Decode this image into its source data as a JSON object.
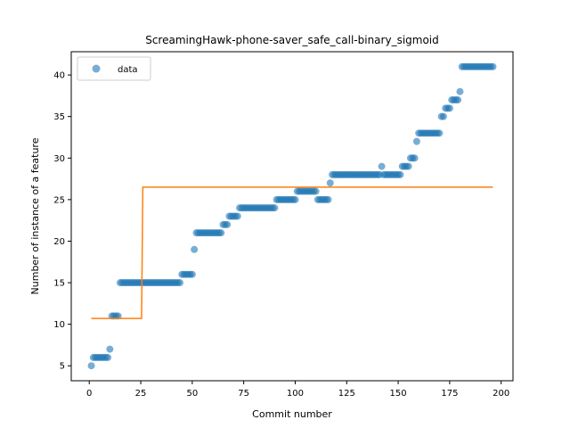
{
  "chart_data": {
    "type": "scatter",
    "title": "ScreamingHawk-phone-saver_safe_call-binary_sigmoid",
    "xlabel": "Commit number",
    "ylabel": "Number of instance of a feature",
    "xlim": [
      -8.75,
      205.75
    ],
    "ylim": [
      3.2,
      42.8
    ],
    "xticks": [
      0,
      25,
      50,
      75,
      100,
      125,
      150,
      175,
      200
    ],
    "yticks": [
      5,
      10,
      15,
      20,
      25,
      30,
      35,
      40
    ],
    "grid": false,
    "legend": {
      "placement": "top-left",
      "entries": [
        "data"
      ]
    },
    "colors": {
      "data": "#1f77b4",
      "fit": "#ff7f0e"
    },
    "series": [
      {
        "name": "data",
        "kind": "scatter",
        "runs": [
          {
            "x_start": 1,
            "x_end": 1,
            "y": 5
          },
          {
            "x_start": 2,
            "x_end": 9,
            "y": 6
          },
          {
            "x_start": 10,
            "x_end": 10,
            "y": 7
          },
          {
            "x_start": 11,
            "x_end": 14,
            "y": 11
          },
          {
            "x_start": 15,
            "x_end": 44,
            "y": 15
          },
          {
            "x_start": 45,
            "x_end": 50,
            "y": 16
          },
          {
            "x_start": 51,
            "x_end": 51,
            "y": 19
          },
          {
            "x_start": 52,
            "x_end": 64,
            "y": 21
          },
          {
            "x_start": 65,
            "x_end": 67,
            "y": 22
          },
          {
            "x_start": 68,
            "x_end": 72,
            "y": 23
          },
          {
            "x_start": 73,
            "x_end": 90,
            "y": 24
          },
          {
            "x_start": 91,
            "x_end": 100,
            "y": 25
          },
          {
            "x_start": 101,
            "x_end": 110,
            "y": 26
          },
          {
            "x_start": 111,
            "x_end": 116,
            "y": 25
          },
          {
            "x_start": 117,
            "x_end": 117,
            "y": 27
          },
          {
            "x_start": 118,
            "x_end": 141,
            "y": 28
          },
          {
            "x_start": 142,
            "x_end": 142,
            "y": 29
          },
          {
            "x_start": 143,
            "x_end": 151,
            "y": 28
          },
          {
            "x_start": 152,
            "x_end": 155,
            "y": 29
          },
          {
            "x_start": 156,
            "x_end": 158,
            "y": 30
          },
          {
            "x_start": 159,
            "x_end": 159,
            "y": 32
          },
          {
            "x_start": 160,
            "x_end": 170,
            "y": 33
          },
          {
            "x_start": 171,
            "x_end": 172,
            "y": 35
          },
          {
            "x_start": 173,
            "x_end": 175,
            "y": 36
          },
          {
            "x_start": 176,
            "x_end": 179,
            "y": 37
          },
          {
            "x_start": 180,
            "x_end": 180,
            "y": 38
          },
          {
            "x_start": 181,
            "x_end": 196,
            "y": 41
          }
        ]
      },
      {
        "name": "",
        "kind": "line",
        "x": [
          1,
          25.4,
          26,
          196
        ],
        "y": [
          10.7,
          10.7,
          26.5,
          26.5
        ]
      }
    ]
  }
}
